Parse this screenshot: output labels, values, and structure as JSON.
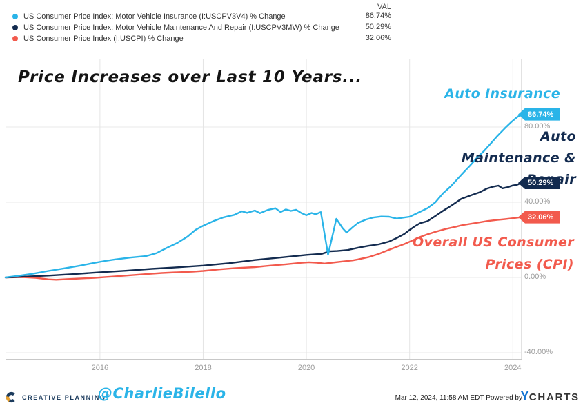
{
  "legend": {
    "val_header": "VAL"
  },
  "annotations": {
    "title": "Price Increases over Last 10 Years...",
    "auto_insurance": "Auto Insurance",
    "maintenance_line1": "Auto",
    "maintenance_line2": "Maintenance &",
    "maintenance_line3": "Repair",
    "cpi_line1": "Overall US Consumer",
    "cpi_line2": "Prices (CPI)"
  },
  "footer": {
    "brand": "CREATIVE PLANNING",
    "brand_reg": "®",
    "handle": "@CharlieBilello",
    "timestamp": "Mar 12, 2024, 11:58 AM EDT",
    "powered_by": "Powered by",
    "ycharts_y": "Y",
    "ycharts_rest": "CHARTS"
  },
  "chart_data": {
    "type": "line",
    "title": "Price Increases over Last 10 Years...",
    "x_range": [
      2014.17,
      2024.17
    ],
    "x_gridline_years": [
      2016,
      2018,
      2020,
      2022,
      2024
    ],
    "x_tick_labels": [
      "2016",
      "2018",
      "2020",
      "2022",
      "2024"
    ],
    "y_gridline_values": [
      80,
      40,
      0,
      -40
    ],
    "y_tick_labels": [
      "80.00%",
      "40.00%",
      "0.00%",
      "-40.00%"
    ],
    "ylim": [
      -46,
      116
    ],
    "y_unit": "% change since Mar 2014",
    "grid": true,
    "series": [
      {
        "name": "US Consumer Price Index: Motor Vehicle Insurance (I:USCPV3V4) % Change",
        "short_name": "Auto Insurance",
        "color": "#2ab4e8",
        "display_value": "86.74%",
        "final_value": 86.74,
        "points": [
          [
            2014.17,
            0
          ],
          [
            2014.4,
            0.8
          ],
          [
            2014.7,
            2
          ],
          [
            2015,
            3.5
          ],
          [
            2015.3,
            4.8
          ],
          [
            2015.6,
            6.2
          ],
          [
            2015.9,
            7.8
          ],
          [
            2016.1,
            8.8
          ],
          [
            2016.3,
            9.6
          ],
          [
            2016.6,
            10.6
          ],
          [
            2016.9,
            11.4
          ],
          [
            2017.1,
            13
          ],
          [
            2017.3,
            15.8
          ],
          [
            2017.5,
            18.4
          ],
          [
            2017.7,
            21.8
          ],
          [
            2017.85,
            25.3
          ],
          [
            2018,
            27.5
          ],
          [
            2018.2,
            30
          ],
          [
            2018.4,
            32
          ],
          [
            2018.6,
            33.3
          ],
          [
            2018.75,
            35.2
          ],
          [
            2018.85,
            34.4
          ],
          [
            2019,
            35.6
          ],
          [
            2019.1,
            34.2
          ],
          [
            2019.25,
            35.9
          ],
          [
            2019.4,
            36.8
          ],
          [
            2019.5,
            34.8
          ],
          [
            2019.6,
            36.2
          ],
          [
            2019.7,
            35.4
          ],
          [
            2019.8,
            36
          ],
          [
            2019.9,
            34.3
          ],
          [
            2020,
            33.1
          ],
          [
            2020.1,
            34.3
          ],
          [
            2020.18,
            33.6
          ],
          [
            2020.28,
            34.8
          ],
          [
            2020.42,
            12.1
          ],
          [
            2020.58,
            31.2
          ],
          [
            2020.7,
            26.3
          ],
          [
            2020.78,
            23.9
          ],
          [
            2020.9,
            26.8
          ],
          [
            2021,
            29
          ],
          [
            2021.15,
            30.8
          ],
          [
            2021.3,
            31.9
          ],
          [
            2021.45,
            32.4
          ],
          [
            2021.6,
            32.3
          ],
          [
            2021.75,
            31.3
          ],
          [
            2021.9,
            31.9
          ],
          [
            2022,
            32.3
          ],
          [
            2022.17,
            34.5
          ],
          [
            2022.35,
            36.9
          ],
          [
            2022.5,
            40
          ],
          [
            2022.65,
            44.8
          ],
          [
            2022.8,
            48.5
          ],
          [
            2022.92,
            52.1
          ],
          [
            2023.05,
            56
          ],
          [
            2023.17,
            59.4
          ],
          [
            2023.3,
            63.5
          ],
          [
            2023.45,
            67.5
          ],
          [
            2023.58,
            71.5
          ],
          [
            2023.7,
            75.2
          ],
          [
            2023.85,
            79.5
          ],
          [
            2023.97,
            82.6
          ],
          [
            2024.08,
            85.2
          ],
          [
            2024.17,
            86.74
          ]
        ]
      },
      {
        "name": "US Consumer Price Index: Motor Vehicle Maintenance And Repair (I:USCPV3MW) % Change",
        "short_name": "Auto Maintenance & Repair",
        "color": "#132b4f",
        "display_value": "50.29%",
        "final_value": 50.29,
        "points": [
          [
            2014.17,
            0
          ],
          [
            2014.5,
            0.4
          ],
          [
            2015,
            1
          ],
          [
            2015.5,
            1.8
          ],
          [
            2016,
            2.8
          ],
          [
            2016.5,
            3.6
          ],
          [
            2017,
            4.6
          ],
          [
            2017.5,
            5.4
          ],
          [
            2018,
            6.3
          ],
          [
            2018.5,
            7.6
          ],
          [
            2019,
            9.3
          ],
          [
            2019.5,
            10.6
          ],
          [
            2020,
            12
          ],
          [
            2020.3,
            12.6
          ],
          [
            2020.45,
            13.9
          ],
          [
            2020.6,
            14.1
          ],
          [
            2020.8,
            14.6
          ],
          [
            2021,
            15.8
          ],
          [
            2021.2,
            16.8
          ],
          [
            2021.4,
            17.6
          ],
          [
            2021.6,
            19.1
          ],
          [
            2021.75,
            21
          ],
          [
            2021.9,
            23.2
          ],
          [
            2022,
            25.3
          ],
          [
            2022.1,
            27.2
          ],
          [
            2022.2,
            28.8
          ],
          [
            2022.35,
            30
          ],
          [
            2022.5,
            32.7
          ],
          [
            2022.65,
            35.5
          ],
          [
            2022.8,
            38
          ],
          [
            2023,
            41.8
          ],
          [
            2023.2,
            43.8
          ],
          [
            2023.35,
            45.2
          ],
          [
            2023.5,
            47.3
          ],
          [
            2023.62,
            48.3
          ],
          [
            2023.72,
            48.8
          ],
          [
            2023.8,
            47.4
          ],
          [
            2023.9,
            48
          ],
          [
            2024,
            48.9
          ],
          [
            2024.08,
            49.3
          ],
          [
            2024.17,
            50.29
          ]
        ]
      },
      {
        "name": "US Consumer Price Index (I:USCPI) % Change",
        "short_name": "Overall US Consumer Prices (CPI)",
        "color": "#f25a4d",
        "display_value": "32.06%",
        "final_value": 32.06,
        "points": [
          [
            2014.17,
            0
          ],
          [
            2014.5,
            0.2
          ],
          [
            2014.75,
            -0.2
          ],
          [
            2015,
            -1
          ],
          [
            2015.15,
            -1.2
          ],
          [
            2015.35,
            -0.9
          ],
          [
            2015.6,
            -0.6
          ],
          [
            2015.9,
            -0.2
          ],
          [
            2016.2,
            0.4
          ],
          [
            2016.5,
            1
          ],
          [
            2016.9,
            1.8
          ],
          [
            2017.2,
            2.4
          ],
          [
            2017.5,
            2.8
          ],
          [
            2017.8,
            3.1
          ],
          [
            2018,
            3.5
          ],
          [
            2018.3,
            4.3
          ],
          [
            2018.6,
            4.9
          ],
          [
            2019,
            5.5
          ],
          [
            2019.3,
            6.3
          ],
          [
            2019.6,
            7
          ],
          [
            2019.9,
            7.8
          ],
          [
            2020.05,
            8.1
          ],
          [
            2020.2,
            7.9
          ],
          [
            2020.35,
            7.4
          ],
          [
            2020.5,
            7.9
          ],
          [
            2020.7,
            8.5
          ],
          [
            2020.9,
            9.1
          ],
          [
            2021,
            9.6
          ],
          [
            2021.2,
            10.8
          ],
          [
            2021.4,
            12.5
          ],
          [
            2021.6,
            14.7
          ],
          [
            2021.75,
            16.3
          ],
          [
            2021.9,
            17.8
          ],
          [
            2022,
            19
          ],
          [
            2022.2,
            21.5
          ],
          [
            2022.35,
            23
          ],
          [
            2022.5,
            24.3
          ],
          [
            2022.7,
            25.8
          ],
          [
            2022.9,
            27
          ],
          [
            2023,
            27.7
          ],
          [
            2023.2,
            28.6
          ],
          [
            2023.35,
            29.3
          ],
          [
            2023.5,
            30
          ],
          [
            2023.7,
            30.6
          ],
          [
            2023.85,
            31
          ],
          [
            2024,
            31.5
          ],
          [
            2024.17,
            32.06
          ]
        ]
      }
    ]
  }
}
